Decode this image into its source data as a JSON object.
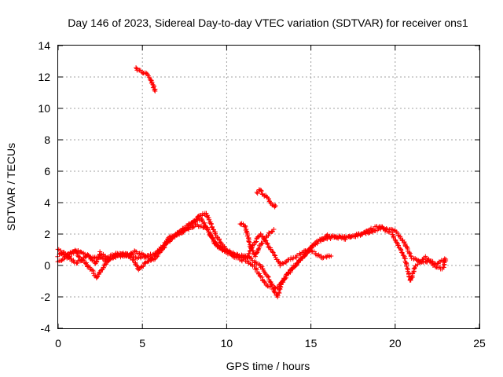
{
  "chart_data": {
    "type": "scatter",
    "title": "Day 146 of 2023, Sidereal Day-to-day VTEC variation (SDTVAR) for receiver ons1",
    "xlabel": "GPS time / hours",
    "ylabel": "SDTVAR / TECUs",
    "xlim": [
      0,
      25
    ],
    "ylim": [
      -4,
      14
    ],
    "xticks": [
      "0",
      "5",
      "10",
      "15",
      "20",
      "25"
    ],
    "yticks": [
      "-4",
      "-2",
      "0",
      "2",
      "4",
      "6",
      "8",
      "10",
      "12",
      "14"
    ],
    "grid": true,
    "marker": "+",
    "series": [
      {
        "name": "ons1",
        "color": "#ff0000",
        "tracks": [
          [
            [
              0,
              0.6
            ],
            [
              0.3,
              0.9
            ],
            [
              0.6,
              0.5
            ],
            [
              1.0,
              1.0
            ],
            [
              1.3,
              0.4
            ],
            [
              1.8,
              0.6
            ],
            [
              2.2,
              0.1
            ],
            [
              2.5,
              0.8
            ],
            [
              3.0,
              0.4
            ],
            [
              3.5,
              0.8
            ],
            [
              4.0,
              0.6
            ],
            [
              4.5,
              0.9
            ],
            [
              5.0,
              0.7
            ],
            [
              5.5,
              0.4
            ],
            [
              6.0,
              1.0
            ],
            [
              6.5,
              1.5
            ],
            [
              7.0,
              2.0
            ],
            [
              7.5,
              2.4
            ],
            [
              8.0,
              2.8
            ],
            [
              8.5,
              3.0
            ],
            [
              9.0,
              2.0
            ],
            [
              9.5,
              1.2
            ],
            [
              10.0,
              0.9
            ],
            [
              10.5,
              0.7
            ],
            [
              11.0,
              0.6
            ],
            [
              11.5,
              0.4
            ],
            [
              12.0,
              0.0
            ],
            [
              12.5,
              -0.8
            ],
            [
              13.0,
              -2.0
            ],
            [
              13.3,
              -1.0
            ],
            [
              13.8,
              -0.3
            ],
            [
              14.3,
              0.3
            ],
            [
              15.0,
              1.1
            ],
            [
              15.5,
              1.6
            ],
            [
              16.0,
              1.9
            ],
            [
              17.0,
              1.7
            ],
            [
              18.0,
              2.0
            ],
            [
              19.0,
              2.5
            ],
            [
              19.5,
              2.3
            ],
            [
              20.0,
              2.2
            ],
            [
              20.5,
              1.5
            ],
            [
              21.0,
              0.5
            ],
            [
              21.5,
              0.2
            ],
            [
              22.0,
              0.3
            ],
            [
              22.5,
              0.1
            ],
            [
              23.0,
              0.4
            ]
          ],
          [
            [
              0,
              0.3
            ],
            [
              0.5,
              0.5
            ],
            [
              1.0,
              0.2
            ],
            [
              1.5,
              0.3
            ],
            [
              2.0,
              -0.3
            ],
            [
              2.3,
              -0.8
            ],
            [
              2.6,
              -0.2
            ],
            [
              3.0,
              0.3
            ],
            [
              3.5,
              0.6
            ],
            [
              4.0,
              0.8
            ],
            [
              4.5,
              0.3
            ],
            [
              4.8,
              -0.3
            ],
            [
              5.2,
              0.2
            ],
            [
              5.8,
              0.5
            ],
            [
              6.3,
              1.2
            ],
            [
              6.8,
              1.8
            ],
            [
              7.5,
              2.2
            ],
            [
              8.2,
              2.6
            ],
            [
              8.8,
              2.4
            ],
            [
              9.3,
              1.4
            ],
            [
              9.8,
              0.9
            ],
            [
              10.2,
              0.7
            ],
            [
              10.8,
              0.4
            ],
            [
              11.3,
              0.2
            ],
            [
              11.8,
              -0.3
            ],
            [
              12.3,
              -1.2
            ],
            [
              12.8,
              -1.5
            ],
            [
              13.2,
              -1.2
            ],
            [
              13.6,
              -0.6
            ],
            [
              14.0,
              -0.1
            ],
            [
              14.6,
              0.6
            ],
            [
              15.2,
              1.4
            ],
            [
              15.8,
              1.7
            ],
            [
              16.5,
              1.8
            ],
            [
              17.5,
              1.9
            ],
            [
              18.5,
              2.1
            ],
            [
              19.2,
              2.4
            ],
            [
              19.8,
              2.0
            ],
            [
              20.2,
              1.2
            ],
            [
              20.6,
              0.4
            ],
            [
              20.9,
              -1.0
            ],
            [
              21.2,
              0.0
            ],
            [
              21.8,
              0.5
            ],
            [
              22.3,
              0.0
            ],
            [
              22.8,
              -0.2
            ],
            [
              23.0,
              0.3
            ]
          ],
          [
            [
              0,
              1.0
            ],
            [
              0.4,
              0.6
            ],
            [
              0.8,
              0.8
            ],
            [
              1.2,
              0.9
            ],
            [
              1.6,
              0.7
            ],
            [
              2.0,
              0.5
            ],
            [
              2.4,
              0.6
            ],
            [
              2.8,
              0.3
            ],
            [
              3.2,
              0.7
            ],
            [
              3.8,
              0.6
            ],
            [
              4.3,
              0.7
            ],
            [
              4.7,
              0.5
            ],
            [
              5.3,
              0.6
            ],
            [
              5.9,
              0.8
            ],
            [
              6.6,
              1.8
            ],
            [
              7.2,
              2.1
            ],
            [
              7.8,
              2.5
            ],
            [
              8.4,
              3.2
            ],
            [
              8.8,
              3.3
            ],
            [
              9.2,
              2.3
            ],
            [
              9.6,
              1.5
            ],
            [
              10.1,
              0.9
            ],
            [
              10.7,
              0.6
            ],
            [
              11.2,
              0.5
            ],
            [
              11.6,
              1.4
            ],
            [
              12.0,
              2.0
            ],
            [
              12.3,
              1.6
            ],
            [
              12.7,
              0.9
            ],
            [
              13.2,
              0.0
            ],
            [
              13.7,
              0.4
            ],
            [
              14.2,
              0.6
            ],
            [
              14.7,
              1.0
            ],
            [
              15.2,
              0.8
            ],
            [
              15.7,
              0.5
            ],
            [
              16.2,
              0.6
            ]
          ],
          [
            [
              10.8,
              2.7
            ],
            [
              11.1,
              2.5
            ],
            [
              11.4,
              1.2
            ],
            [
              11.7,
              0.6
            ],
            [
              12.0,
              1.3
            ],
            [
              12.4,
              1.9
            ],
            [
              12.8,
              2.3
            ]
          ],
          [
            [
              4.6,
              12.6
            ],
            [
              4.8,
              12.4
            ],
            [
              5.0,
              12.3
            ],
            [
              5.2,
              12.25
            ],
            [
              5.4,
              12.0
            ],
            [
              5.6,
              11.6
            ],
            [
              5.75,
              11.1
            ]
          ],
          [
            [
              11.8,
              4.6
            ],
            [
              12.0,
              4.8
            ],
            [
              12.2,
              4.5
            ],
            [
              12.4,
              4.3
            ],
            [
              12.6,
              4.0
            ],
            [
              12.8,
              3.8
            ],
            [
              12.9,
              3.8
            ]
          ]
        ]
      }
    ]
  }
}
